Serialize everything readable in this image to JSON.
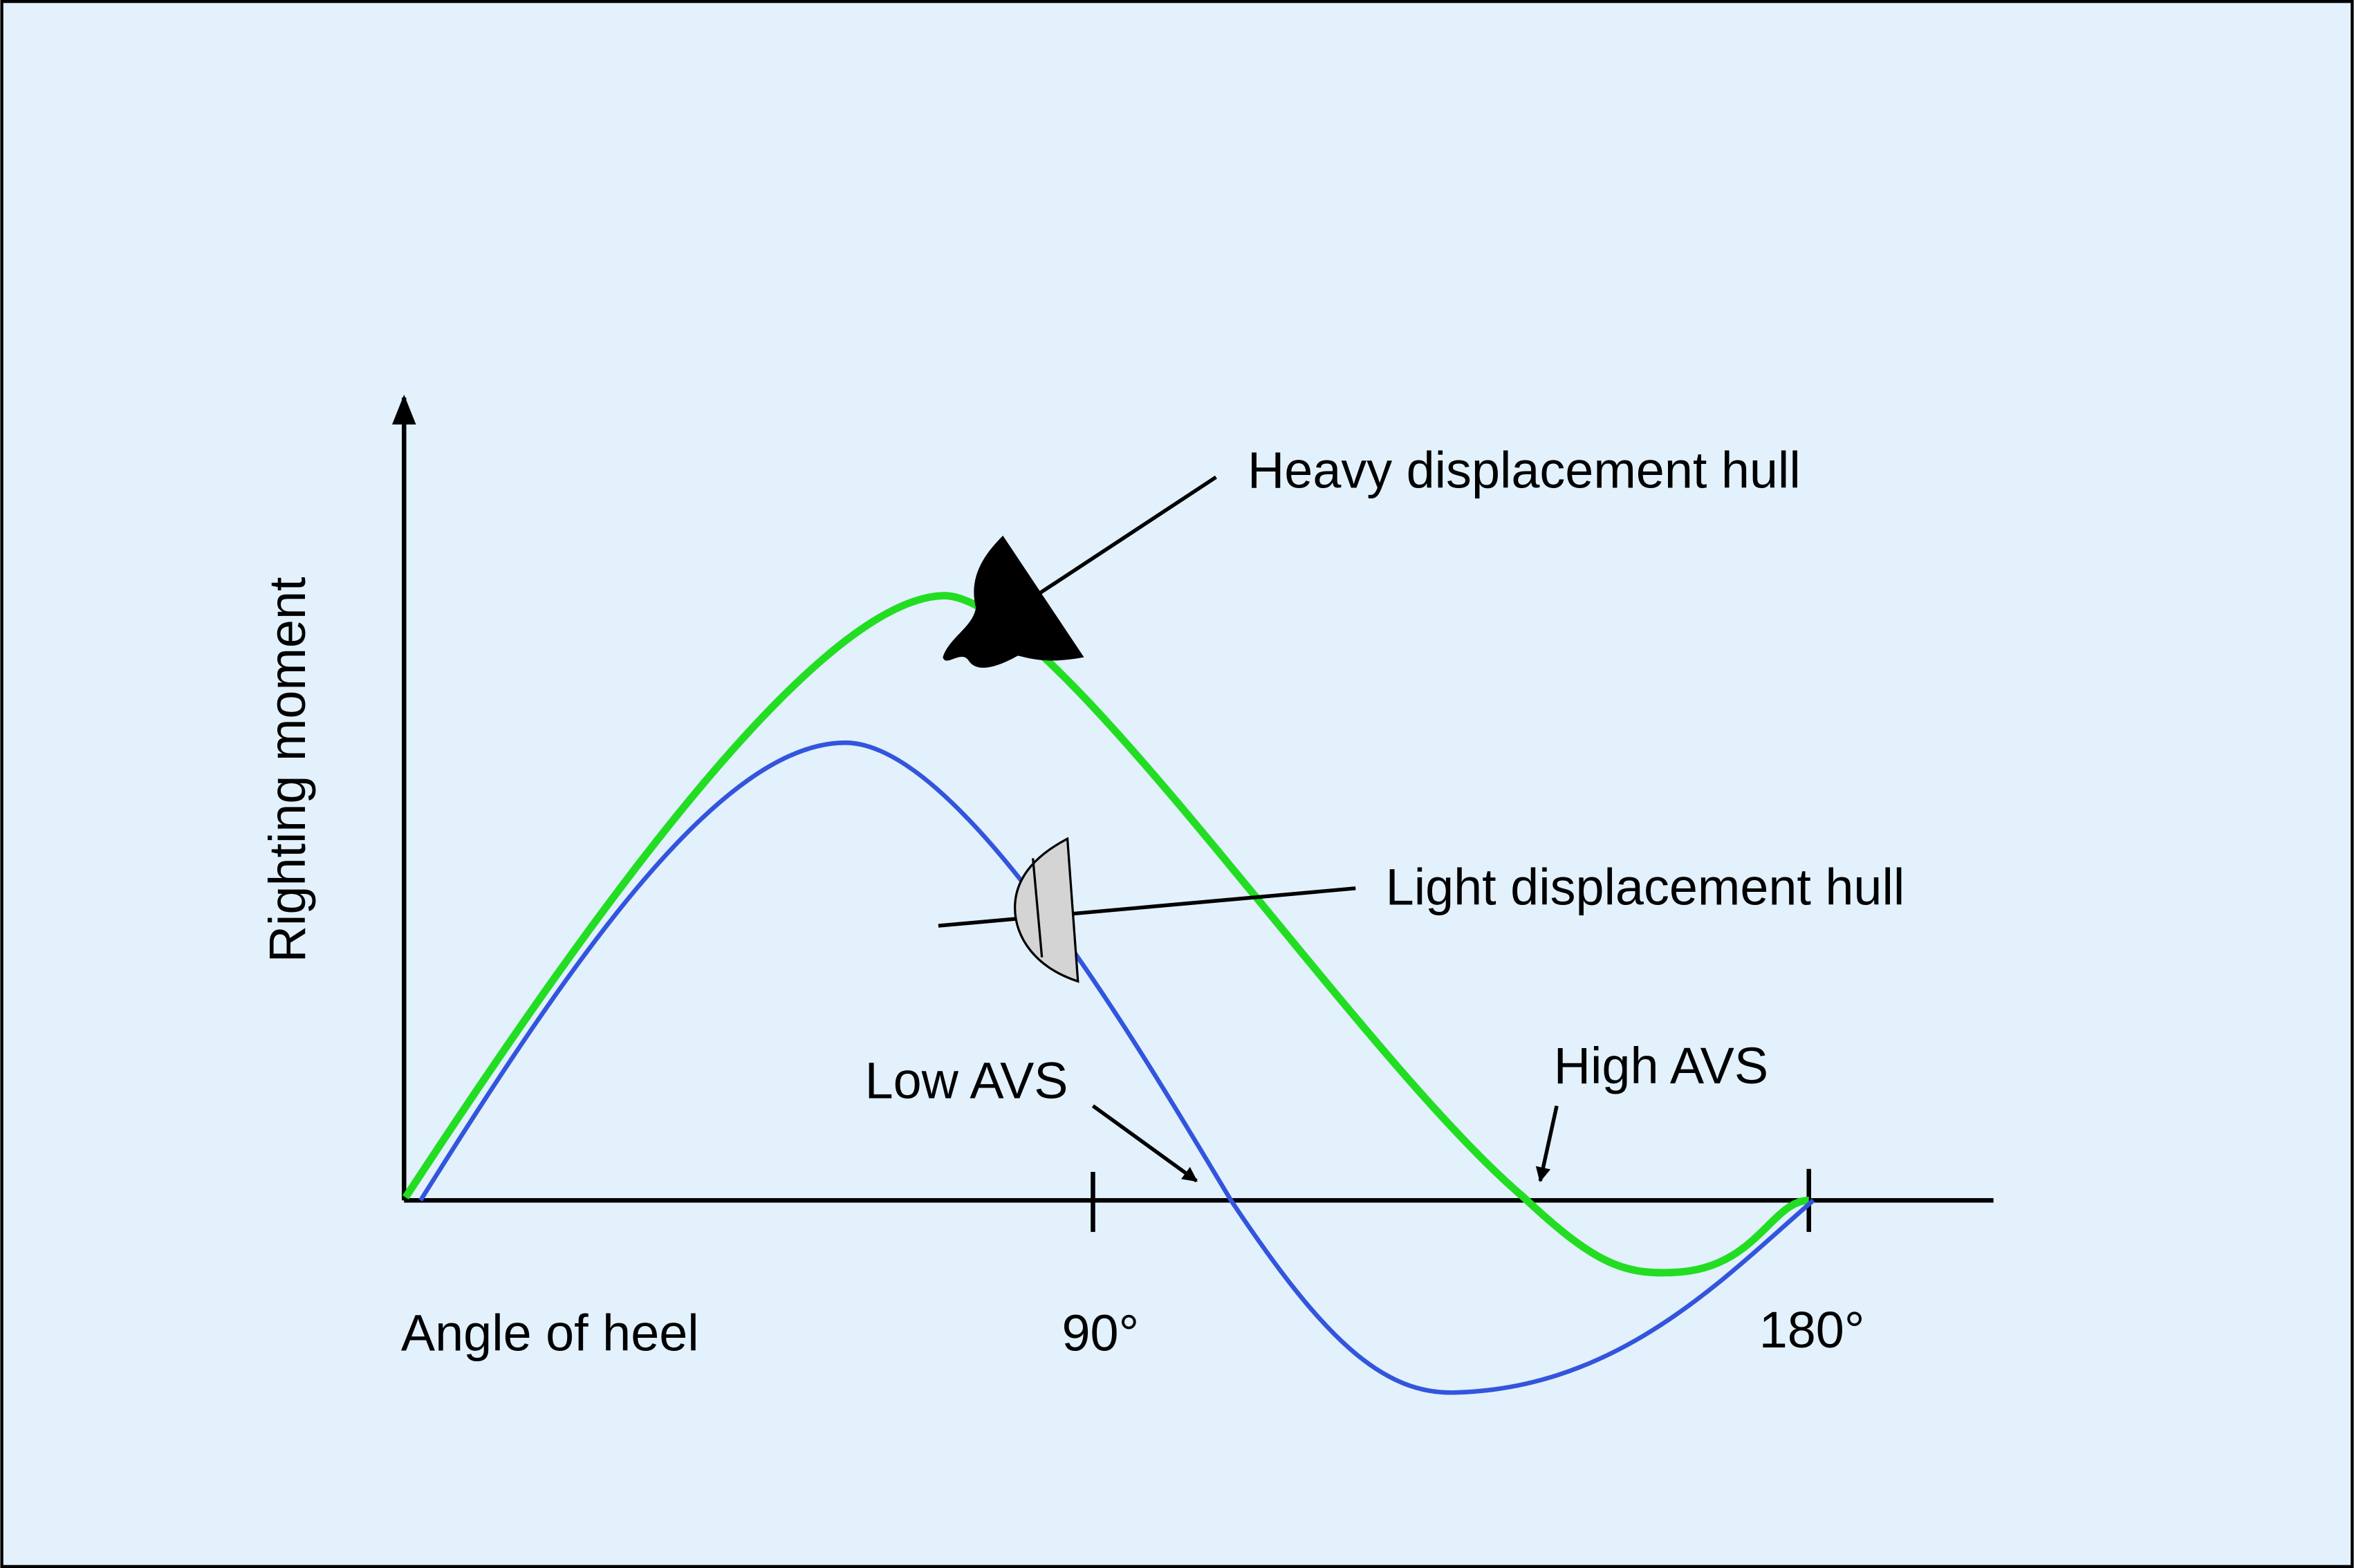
{
  "axis_labels": {
    "y": "Righting moment",
    "x": "Angle of heel"
  },
  "ticks": [
    "90°",
    "180°"
  ],
  "annotations": {
    "heavy": "Heavy displacement hull",
    "light": "Light displacement hull",
    "low_avs": "Low AVS",
    "high_avs": "High AVS"
  }
}
